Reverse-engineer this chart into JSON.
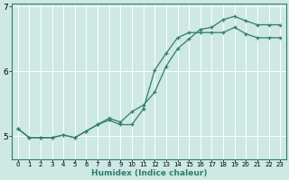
{
  "xlabel": "Humidex (Indice chaleur)",
  "ylabel": "",
  "bg_color": "#cee8e4",
  "line_color": "#2e7d6e",
  "grid_color": "#ffffff",
  "x_min": -0.5,
  "x_max": 23.5,
  "y_min": 4.65,
  "y_max": 7.05,
  "yticks": [
    5,
    6,
    7
  ],
  "xticks": [
    0,
    1,
    2,
    3,
    4,
    5,
    6,
    7,
    8,
    9,
    10,
    11,
    12,
    13,
    14,
    15,
    16,
    17,
    18,
    19,
    20,
    21,
    22,
    23
  ],
  "line1_x": [
    0,
    1,
    2,
    3,
    4,
    5,
    6,
    7,
    8,
    9,
    10,
    11,
    12,
    13,
    14,
    15,
    16,
    17,
    18,
    19,
    20,
    21,
    22,
    23
  ],
  "line1_y": [
    5.12,
    4.98,
    4.98,
    4.98,
    5.02,
    4.98,
    5.08,
    5.18,
    5.25,
    5.18,
    5.18,
    5.42,
    6.02,
    6.28,
    6.52,
    6.6,
    6.6,
    6.6,
    6.6,
    6.68,
    6.58,
    6.52,
    6.52,
    6.52
  ],
  "line2_x": [
    0,
    1,
    2,
    3,
    4,
    5,
    6,
    7,
    8,
    9,
    10,
    11,
    12,
    13,
    14,
    15,
    16,
    17,
    18,
    19,
    20,
    21,
    22,
    23
  ],
  "line2_y": [
    5.12,
    4.98,
    4.98,
    4.98,
    5.02,
    4.98,
    5.08,
    5.18,
    5.28,
    5.22,
    5.38,
    5.48,
    5.68,
    6.08,
    6.35,
    6.5,
    6.65,
    6.68,
    6.8,
    6.85,
    6.78,
    6.72,
    6.72,
    6.72
  ]
}
